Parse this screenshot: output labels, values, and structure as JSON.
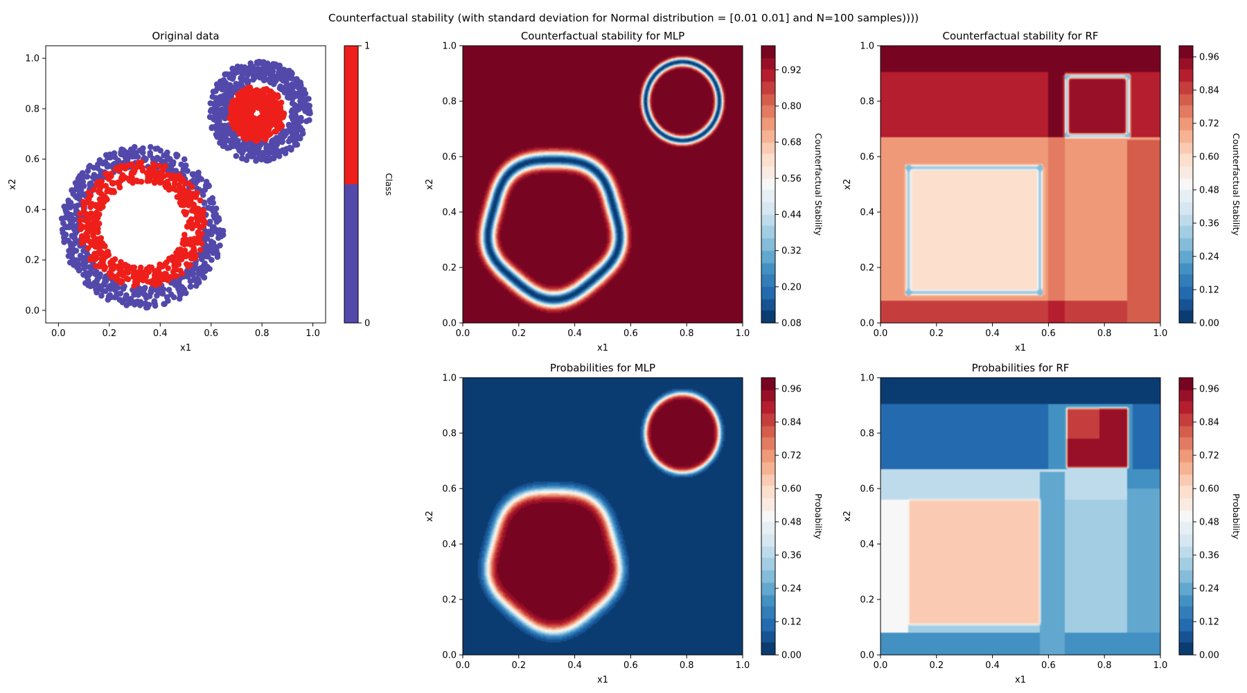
{
  "figure_title": "Counterfactual stability (with standard deviation for Normal distribution = [0.01 0.01] and N=100 samples))))",
  "colors": {
    "class0": "#5249ab",
    "class1": "#ee1f1a",
    "rdbu": [
      "#053061",
      "#2166ac",
      "#4393c3",
      "#92c5de",
      "#d1e5f0",
      "#f7f7f7",
      "#fddbc7",
      "#f4a582",
      "#d6604d",
      "#b2182b",
      "#67001f"
    ]
  },
  "chart_data": [
    {
      "id": "original",
      "type": "scatter",
      "title": "Original data",
      "xlabel": "x1",
      "ylabel": "x2",
      "xlim": [
        -0.05,
        1.05
      ],
      "ylim": [
        -0.05,
        1.05
      ],
      "xticks": [
        "0.0",
        "0.2",
        "0.4",
        "0.6",
        "0.8",
        "1.0"
      ],
      "yticks": [
        "0.0",
        "0.2",
        "0.4",
        "0.6",
        "0.8",
        "1.0"
      ],
      "series": [
        {
          "rings": [
            {
              "cx": 0.33,
              "cy": 0.33,
              "r_min": 0.24,
              "r_max": 0.32,
              "n": 620
            },
            {
              "cx": 0.79,
              "cy": 0.79,
              "r_min": 0.12,
              "r_max": 0.2,
              "n": 560
            }
          ]
        },
        {
          "rings": [
            {
              "cx": 0.33,
              "cy": 0.34,
              "r_min": 0.17,
              "r_max": 0.25,
              "n": 520
            },
            {
              "cx": 0.78,
              "cy": 0.78,
              "r_min": 0.02,
              "r_max": 0.11,
              "n": 480
            }
          ]
        }
      ],
      "colorbar": {
        "label": "Class",
        "ticks": [
          "0",
          "1"
        ]
      }
    },
    {
      "id": "cf_mlp",
      "type": "heatmap",
      "model": "mlp",
      "metric": "stability",
      "title": "Counterfactual stability for MLP",
      "xlabel": "x1",
      "ylabel": "x2",
      "xlim": [
        0,
        1
      ],
      "ylim": [
        0,
        1
      ],
      "xticks": [
        "0.0",
        "0.2",
        "0.4",
        "0.6",
        "0.8",
        "1.0"
      ],
      "yticks": [
        "0.0",
        "0.2",
        "0.4",
        "0.6",
        "0.8",
        "1.0"
      ],
      "value_range": [
        0.08,
        1.0
      ],
      "colorbar": {
        "label": "Counterfactual Stability",
        "ticks": [
          "0.08",
          "0.20",
          "0.32",
          "0.44",
          "0.56",
          "0.68",
          "0.80",
          "0.92"
        ],
        "tick_values": [
          0.08,
          0.2,
          0.32,
          0.44,
          0.56,
          0.68,
          0.8,
          0.92
        ]
      }
    },
    {
      "id": "cf_rf",
      "type": "heatmap",
      "model": "rf",
      "metric": "stability",
      "title": "Counterfactual stability for RF",
      "xlabel": "x1",
      "ylabel": "x2",
      "xlim": [
        0,
        1
      ],
      "ylim": [
        0,
        1
      ],
      "xticks": [
        "0.0",
        "0.2",
        "0.4",
        "0.6",
        "0.8",
        "1.0"
      ],
      "yticks": [
        "0.0",
        "0.2",
        "0.4",
        "0.6",
        "0.8",
        "1.0"
      ],
      "value_range": [
        0.0,
        1.0
      ],
      "colorbar": {
        "label": "Counterfactual Stability",
        "ticks": [
          "0.00",
          "0.12",
          "0.24",
          "0.36",
          "0.48",
          "0.60",
          "0.72",
          "0.84",
          "0.96"
        ],
        "tick_values": [
          0,
          0.12,
          0.24,
          0.36,
          0.48,
          0.6,
          0.72,
          0.84,
          0.96
        ]
      }
    },
    {
      "id": "prob_mlp",
      "type": "heatmap",
      "model": "mlp",
      "metric": "probability",
      "title": "Probabilities for MLP",
      "xlabel": "x1",
      "ylabel": "x2",
      "xlim": [
        0,
        1
      ],
      "ylim": [
        0,
        1
      ],
      "xticks": [
        "0.0",
        "0.2",
        "0.4",
        "0.6",
        "0.8",
        "1.0"
      ],
      "yticks": [
        "0.0",
        "0.2",
        "0.4",
        "0.6",
        "0.8",
        "1.0"
      ],
      "value_range": [
        0.0,
        1.0
      ],
      "colorbar": {
        "label": "Probability",
        "ticks": [
          "0.00",
          "0.12",
          "0.24",
          "0.36",
          "0.48",
          "0.60",
          "0.72",
          "0.84",
          "0.96"
        ],
        "tick_values": [
          0,
          0.12,
          0.24,
          0.36,
          0.48,
          0.6,
          0.72,
          0.84,
          0.96
        ]
      }
    },
    {
      "id": "prob_rf",
      "type": "heatmap",
      "model": "rf",
      "metric": "probability",
      "title": "Probabilities for RF",
      "xlabel": "x1",
      "ylabel": "x2",
      "xlim": [
        0,
        1
      ],
      "ylim": [
        0,
        1
      ],
      "xticks": [
        "0.0",
        "0.2",
        "0.4",
        "0.6",
        "0.8",
        "1.0"
      ],
      "yticks": [
        "0.0",
        "0.2",
        "0.4",
        "0.6",
        "0.8",
        "1.0"
      ],
      "value_range": [
        0.0,
        1.0
      ],
      "colorbar": {
        "label": "Probability",
        "ticks": [
          "0.00",
          "0.12",
          "0.24",
          "0.36",
          "0.48",
          "0.60",
          "0.72",
          "0.84",
          "0.96"
        ],
        "tick_values": [
          0,
          0.12,
          0.24,
          0.36,
          0.48,
          0.6,
          0.72,
          0.84,
          0.96
        ]
      }
    }
  ]
}
